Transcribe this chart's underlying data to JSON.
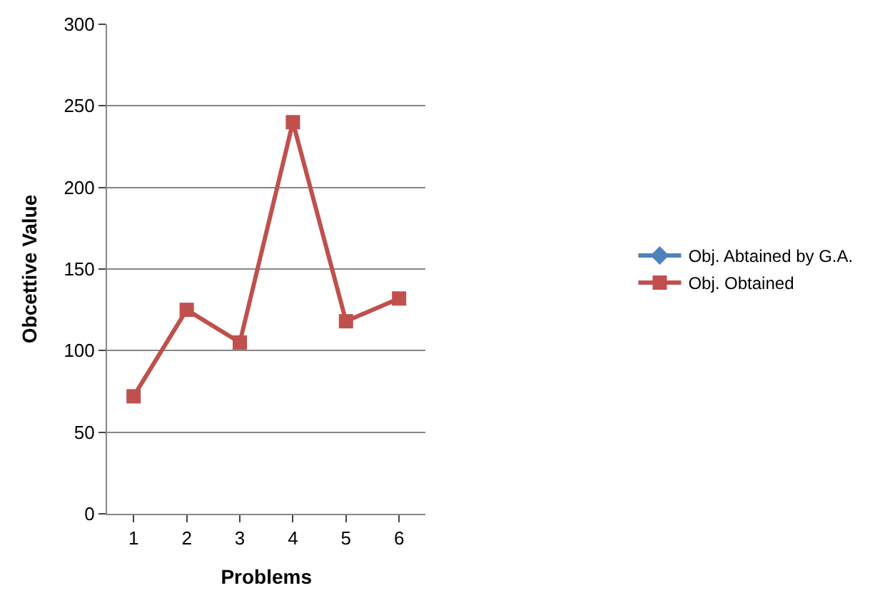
{
  "chart_data": {
    "type": "line",
    "xlabel": "Problems",
    "ylabel": "Obcettive Value",
    "categories": [
      "1",
      "2",
      "3",
      "4",
      "5",
      "6"
    ],
    "series": [
      {
        "name": "Obj. Abtained by G.A.",
        "color": "#4f81bd",
        "marker": "diamond",
        "values": [
          null,
          null,
          null,
          null,
          null,
          null
        ]
      },
      {
        "name": "Obj. Obtained",
        "color": "#c0504d",
        "marker": "square",
        "values": [
          72,
          125,
          105,
          240,
          118,
          132
        ]
      }
    ],
    "ylim": [
      0,
      300
    ],
    "yticks": [
      0,
      50,
      100,
      150,
      200,
      250,
      300
    ],
    "grid": "y",
    "legend": "right",
    "line_style": "solid"
  }
}
